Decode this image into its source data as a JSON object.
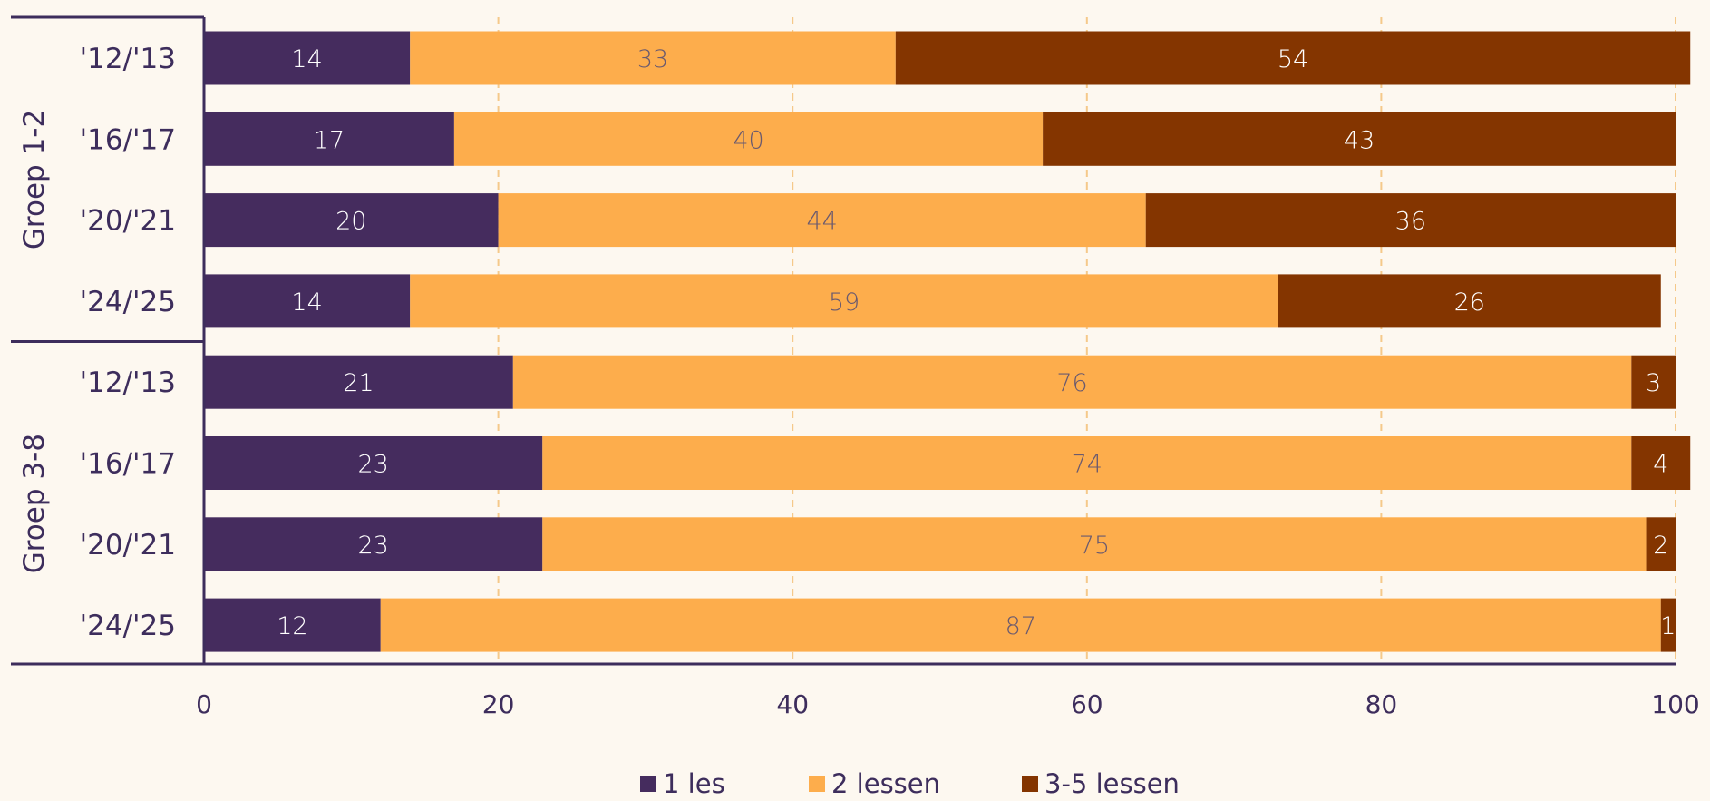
{
  "chart_data": {
    "type": "bar",
    "orientation": "horizontal",
    "stacked": true,
    "title": "",
    "xlabel": "",
    "ylabel": "",
    "xlim": [
      0,
      100
    ],
    "x_ticks": [
      0,
      20,
      40,
      60,
      80,
      100
    ],
    "grid": "vertical dashed",
    "legend_position": "bottom",
    "groups": [
      {
        "name": "Groep 1-2",
        "categories": [
          "'12/'13",
          "'16/'17",
          "'20/'21",
          "'24/'25"
        ]
      },
      {
        "name": "Groep 3-8",
        "categories": [
          "'12/'13",
          "'16/'17",
          "'20/'21",
          "'24/'25"
        ]
      }
    ],
    "series": [
      {
        "name": "1 les",
        "color": "#452c5e",
        "label_color": "#ffffff",
        "values": [
          14,
          17,
          20,
          14,
          21,
          23,
          23,
          12
        ]
      },
      {
        "name": "2 lessen",
        "color": "#fdad4c",
        "label_color": "#6b5a6e",
        "values": [
          33,
          40,
          44,
          59,
          76,
          74,
          75,
          87
        ]
      },
      {
        "name": "3-5 lessen",
        "color": "#843500",
        "label_color": "#ffffff",
        "values": [
          54,
          43,
          36,
          26,
          3,
          4,
          2,
          1
        ]
      }
    ]
  }
}
